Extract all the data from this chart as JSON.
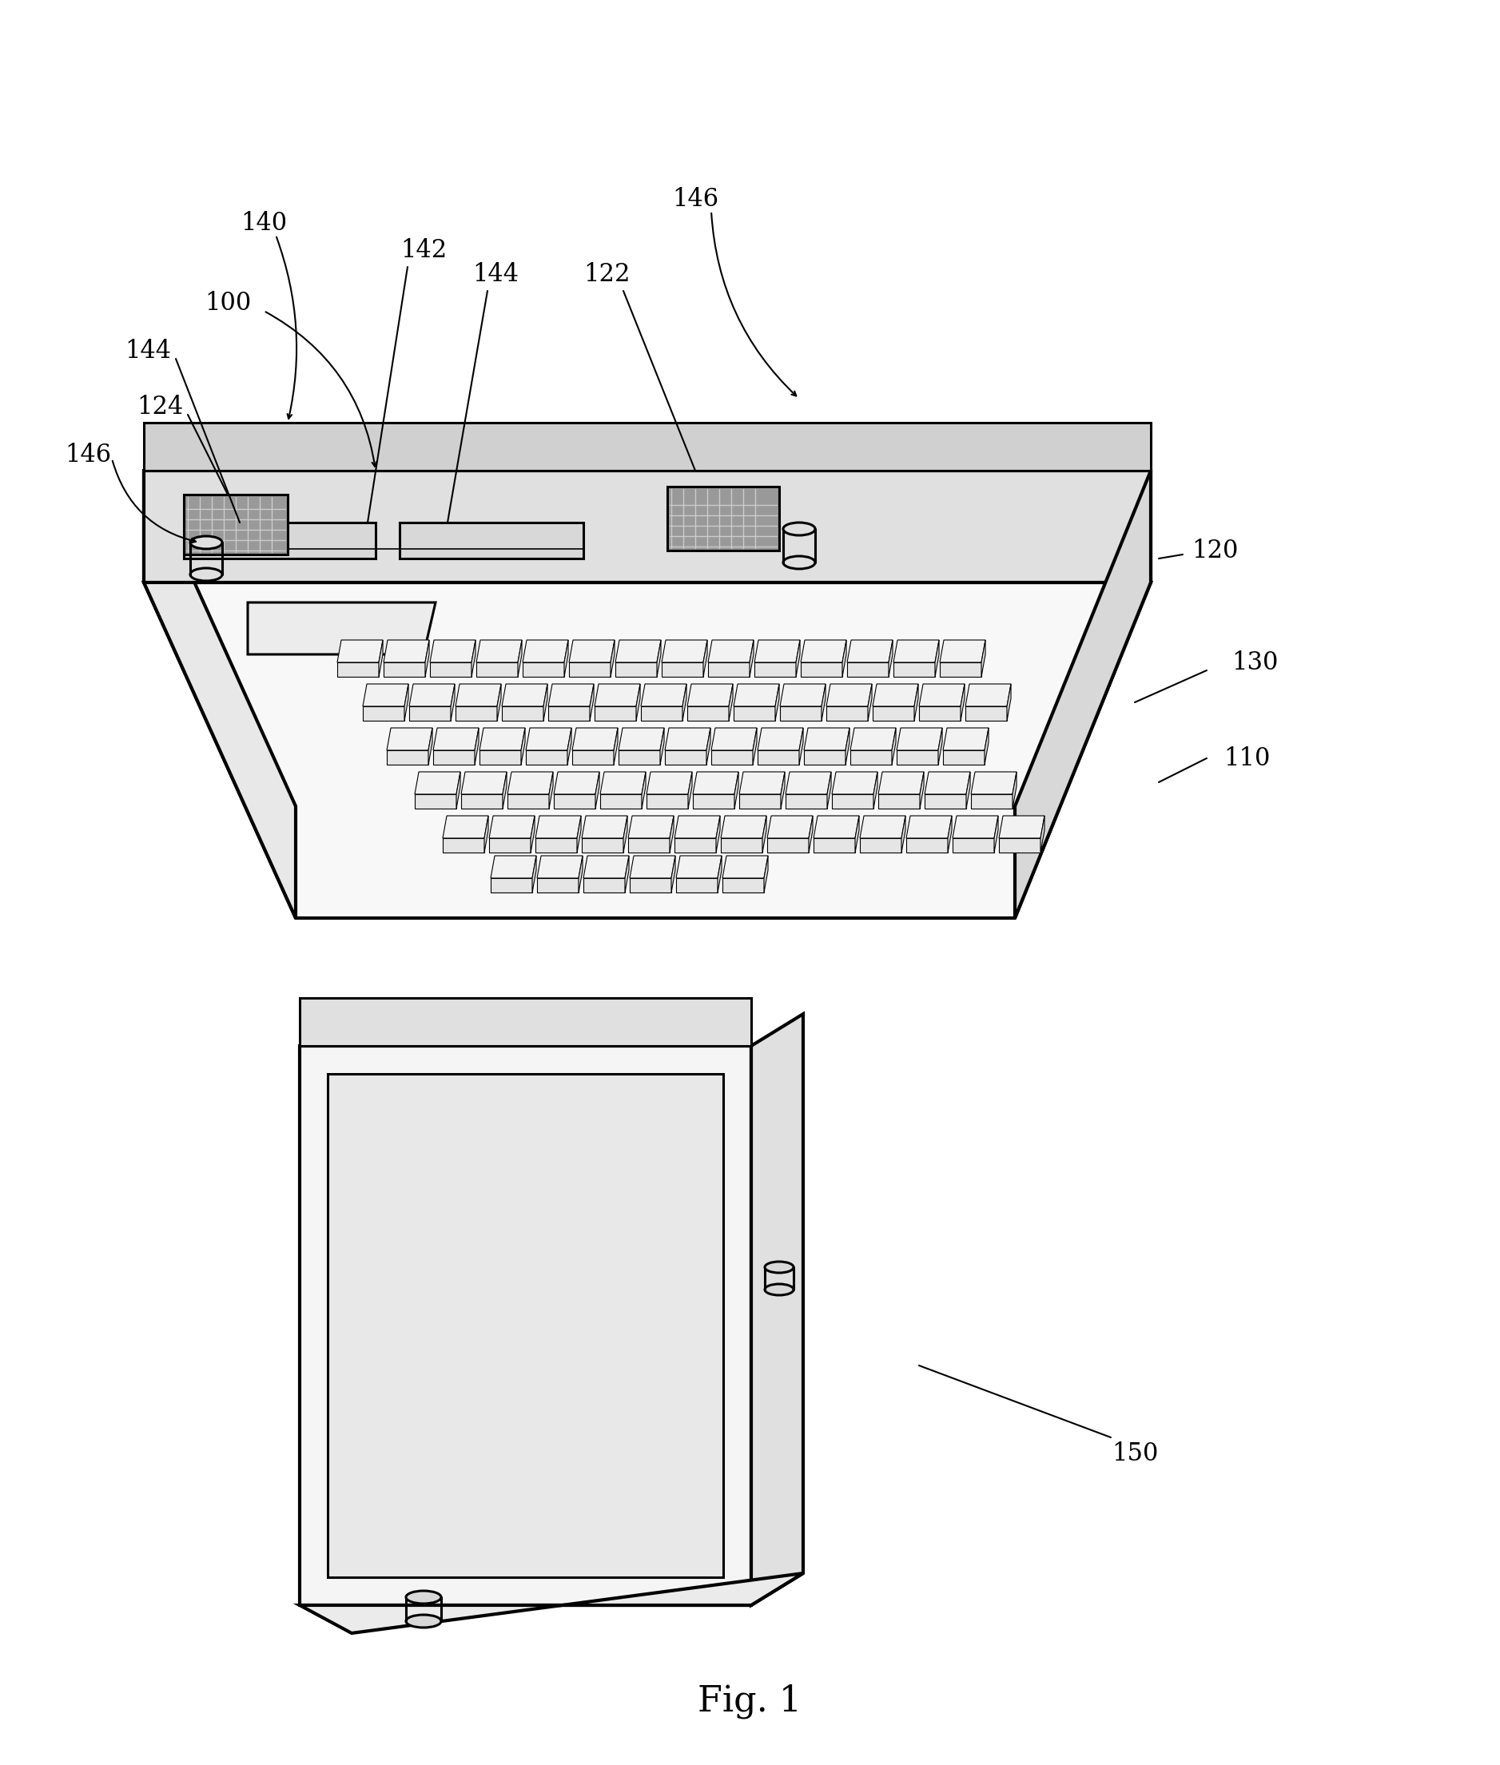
{
  "fig_label": "Fig. 1",
  "fig_label_fontsize": 32,
  "background_color": "#ffffff",
  "line_color": "#000000",
  "line_width": 2.2,
  "fill_white": "#ffffff",
  "fill_light": "#f0f0f0",
  "fill_medium": "#e0e0e0",
  "fill_dark": "#cccccc",
  "fill_grille": "#888888",
  "label_fontsize": 22
}
